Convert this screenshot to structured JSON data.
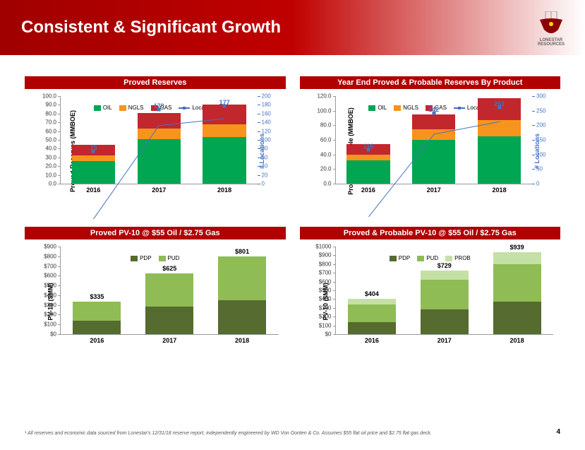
{
  "header": {
    "title": "Consistent & Significant Growth",
    "logo_label": "LONESTAR",
    "logo_sub": "RESOURCES"
  },
  "colors": {
    "oil": "#00a651",
    "ngls": "#f7941d",
    "gas": "#c1272d",
    "line": "#4472c4",
    "pdp": "#556b2f",
    "pud": "#8fbc54",
    "prob": "#c5e0a5",
    "bar_title_bg": "#b00000"
  },
  "charts": {
    "proved_reserves": {
      "title": "Proved Reserves",
      "type": "stacked-bar+line",
      "y_axis": {
        "label": "Proved Reserves (MMBOE)",
        "min": 0,
        "max": 100,
        "step": 10
      },
      "y2_axis": {
        "label": "# Locations",
        "min": 0,
        "max": 200,
        "step": 20
      },
      "categories": [
        "2016",
        "2017",
        "2018"
      ],
      "series": [
        {
          "name": "OIL",
          "color": "#00a651",
          "values": [
            26,
            51,
            53
          ]
        },
        {
          "name": "NGLS",
          "color": "#f7941d",
          "values": [
            6,
            12,
            15
          ]
        },
        {
          "name": "GAS",
          "color": "#c1272d",
          "values": [
            12,
            18,
            22
          ]
        }
      ],
      "line": {
        "name": "Locations",
        "values": [
          75,
          170,
          177
        ]
      },
      "line_labels": [
        "75",
        "170",
        "177"
      ]
    },
    "proved_probable": {
      "title": "Year End Proved & Probable Reserves By Product",
      "type": "stacked-bar+line",
      "y_axis": {
        "label": "Proved & Probable (MMBOE)",
        "min": 0,
        "max": 120,
        "step": 20
      },
      "y2_axis": {
        "label": "# Locations",
        "min": 0,
        "max": 300,
        "step": 50
      },
      "categories": [
        "2016",
        "2017",
        "2018"
      ],
      "series": [
        {
          "name": "OIL",
          "color": "#00a651",
          "values": [
            32,
            60,
            65
          ]
        },
        {
          "name": "NGLS",
          "color": "#f7941d",
          "values": [
            8,
            15,
            22
          ]
        },
        {
          "name": "GAS",
          "color": "#c1272d",
          "values": [
            14,
            20,
            30
          ]
        }
      ],
      "line": {
        "name": "Locations",
        "values": [
          116,
          242,
          261
        ]
      },
      "line_labels": [
        "116",
        "242",
        "261"
      ]
    },
    "proved_pv10": {
      "title": "Proved PV-10 @ $55 Oil / $2.75 Gas",
      "type": "stacked-bar",
      "y_axis": {
        "label": "PV-10 ($MM)",
        "min": 0,
        "max": 900,
        "step": 100
      },
      "categories": [
        "2016",
        "2017",
        "2018"
      ],
      "series": [
        {
          "name": "PDP",
          "color": "#556b2f",
          "values": [
            135,
            280,
            345
          ]
        },
        {
          "name": "PUD",
          "color": "#8fbc54",
          "values": [
            200,
            345,
            456
          ]
        }
      ],
      "totals": [
        "$335",
        "$625",
        "$801"
      ]
    },
    "pp_pv10": {
      "title": "Proved & Probable PV-10 @ $55 Oil / $2.75 Gas",
      "type": "stacked-bar",
      "y_axis": {
        "label": "PV-10 ($MM)",
        "min": 0,
        "max": 1000,
        "step": 100
      },
      "categories": [
        "2016",
        "2017",
        "2018"
      ],
      "series": [
        {
          "name": "PDP",
          "color": "#556b2f",
          "values": [
            135,
            280,
            375
          ]
        },
        {
          "name": "PUD",
          "color": "#8fbc54",
          "values": [
            200,
            345,
            420
          ]
        },
        {
          "name": "PROB",
          "color": "#c5e0a5",
          "values": [
            69,
            104,
            144
          ]
        }
      ],
      "totals": [
        "$404",
        "$729",
        "$939"
      ]
    }
  },
  "footnote": "¹ All reserves and economic data sourced from Lonestar's 12/31/18 reserve report, independently engineered by WD Von Gonten & Co. Assumes $55 flat oil price and $2.75 flat gas deck.",
  "page_number": "4"
}
